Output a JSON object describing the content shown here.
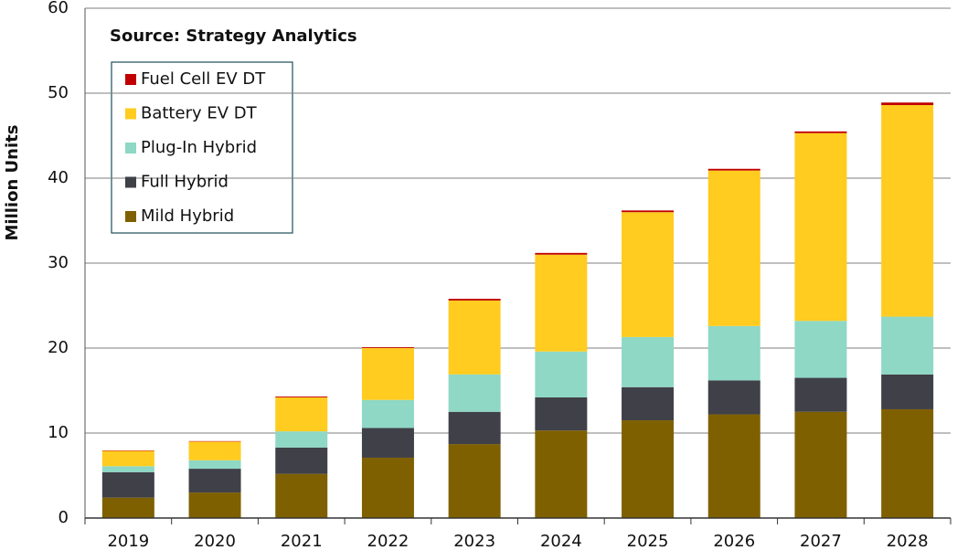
{
  "chart_data": {
    "type": "stacked_bar",
    "source": "Source: Strategy Analytics",
    "y_label": "Million Units",
    "categories": [
      "2019",
      "2020",
      "2021",
      "2022",
      "2023",
      "2024",
      "2025",
      "2026",
      "2027",
      "2028"
    ],
    "series": [
      {
        "name": "Mild Hybrid",
        "color": "#7f6000",
        "values": [
          2.4,
          3.0,
          5.2,
          7.1,
          8.7,
          10.3,
          11.5,
          12.2,
          12.5,
          12.8
        ]
      },
      {
        "name": "Full Hybrid",
        "color": "#404048",
        "values": [
          3.0,
          2.8,
          3.1,
          3.5,
          3.8,
          3.9,
          3.9,
          4.0,
          4.0,
          4.1
        ]
      },
      {
        "name": "Plug-In Hybrid",
        "color": "#8ed8c5",
        "values": [
          0.7,
          1.0,
          1.9,
          3.3,
          4.4,
          5.4,
          5.9,
          6.4,
          6.7,
          6.8
        ]
      },
      {
        "name": "Battery EV DT",
        "color": "#ffcc1f",
        "values": [
          1.8,
          2.2,
          4.0,
          6.1,
          8.7,
          11.4,
          14.7,
          18.3,
          22.1,
          24.9
        ]
      },
      {
        "name": "Fuel Cell EV DT",
        "color": "#c00000",
        "values": [
          0.05,
          0.05,
          0.1,
          0.1,
          0.2,
          0.2,
          0.2,
          0.2,
          0.2,
          0.3
        ]
      }
    ],
    "ylim": [
      0,
      60
    ],
    "yticks": [
      0,
      10,
      20,
      30,
      40,
      50,
      60
    ],
    "grid": true
  }
}
